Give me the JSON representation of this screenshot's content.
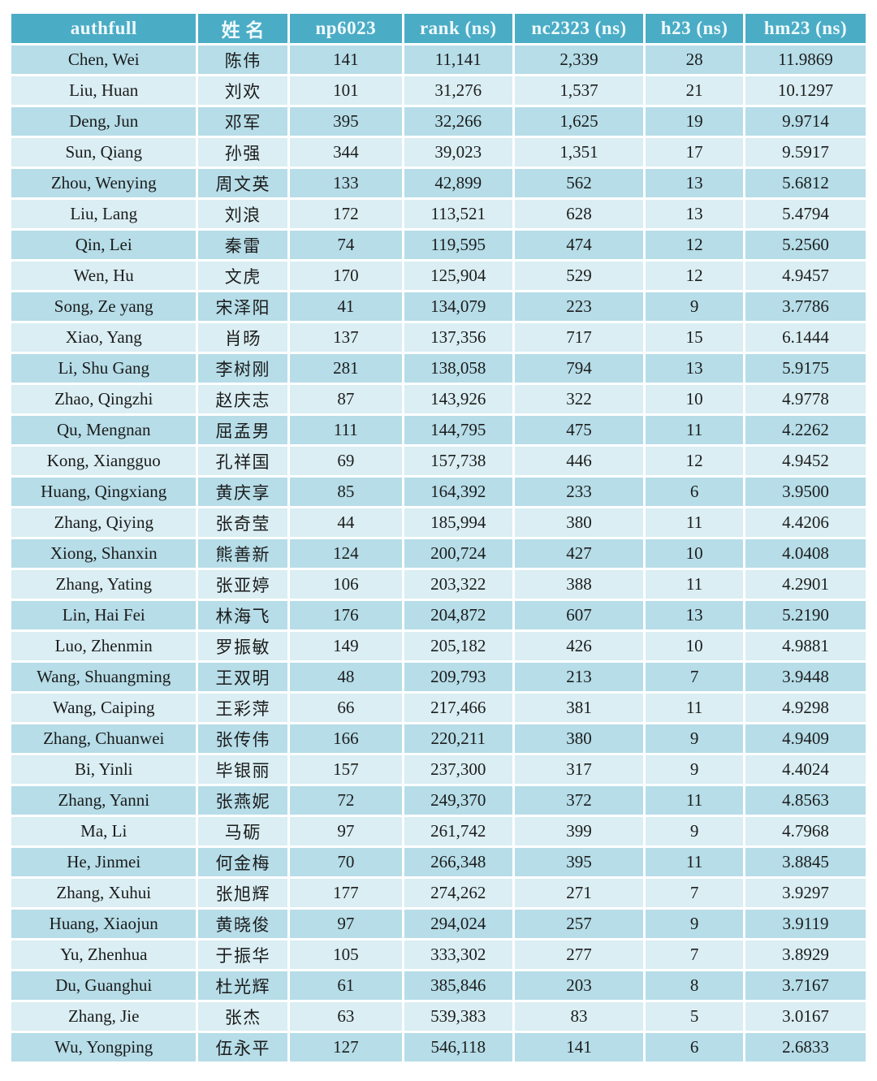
{
  "colors": {
    "header_bg": "#4BACC6",
    "header_text": "#F0FAFC",
    "row_band_dark": "#B6DDE8",
    "row_band_light": "#DAEEF3",
    "cell_text": "#1c1c1c",
    "gridline": "#ffffff"
  },
  "chart_data": {
    "type": "table",
    "columns": [
      "authfull",
      "姓 名",
      "np6023",
      "rank (ns)",
      "nc2323 (ns)",
      "h23 (ns)",
      "hm23 (ns)"
    ],
    "column_keys": [
      "authfull",
      "xingming",
      "np6023",
      "rank",
      "nc2323",
      "h23",
      "hm23"
    ],
    "rows": [
      [
        "Chen, Wei",
        "陈伟",
        "141",
        "11,141",
        "2,339",
        "28",
        "11.9869"
      ],
      [
        "Liu, Huan",
        "刘欢",
        "101",
        "31,276",
        "1,537",
        "21",
        "10.1297"
      ],
      [
        "Deng, Jun",
        "邓军",
        "395",
        "32,266",
        "1,625",
        "19",
        "9.9714"
      ],
      [
        "Sun, Qiang",
        "孙强",
        "344",
        "39,023",
        "1,351",
        "17",
        "9.5917"
      ],
      [
        "Zhou, Wenying",
        "周文英",
        "133",
        "42,899",
        "562",
        "13",
        "5.6812"
      ],
      [
        "Liu, Lang",
        "刘浪",
        "172",
        "113,521",
        "628",
        "13",
        "5.4794"
      ],
      [
        "Qin, Lei",
        "秦雷",
        "74",
        "119,595",
        "474",
        "12",
        "5.2560"
      ],
      [
        "Wen, Hu",
        "文虎",
        "170",
        "125,904",
        "529",
        "12",
        "4.9457"
      ],
      [
        "Song, Ze yang",
        "宋泽阳",
        "41",
        "134,079",
        "223",
        "9",
        "3.7786"
      ],
      [
        "Xiao, Yang",
        "肖旸",
        "137",
        "137,356",
        "717",
        "15",
        "6.1444"
      ],
      [
        "Li, Shu Gang",
        "李树刚",
        "281",
        "138,058",
        "794",
        "13",
        "5.9175"
      ],
      [
        "Zhao, Qingzhi",
        "赵庆志",
        "87",
        "143,926",
        "322",
        "10",
        "4.9778"
      ],
      [
        "Qu, Mengnan",
        "屈孟男",
        "111",
        "144,795",
        "475",
        "11",
        "4.2262"
      ],
      [
        "Kong, Xiangguo",
        "孔祥国",
        "69",
        "157,738",
        "446",
        "12",
        "4.9452"
      ],
      [
        "Huang, Qingxiang",
        "黄庆享",
        "85",
        "164,392",
        "233",
        "6",
        "3.9500"
      ],
      [
        "Zhang, Qiying",
        "张奇莹",
        "44",
        "185,994",
        "380",
        "11",
        "4.4206"
      ],
      [
        "Xiong, Shanxin",
        "熊善新",
        "124",
        "200,724",
        "427",
        "10",
        "4.0408"
      ],
      [
        "Zhang, Yating",
        "张亚婷",
        "106",
        "203,322",
        "388",
        "11",
        "4.2901"
      ],
      [
        "Lin, Hai Fei",
        "林海飞",
        "176",
        "204,872",
        "607",
        "13",
        "5.2190"
      ],
      [
        "Luo, Zhenmin",
        "罗振敏",
        "149",
        "205,182",
        "426",
        "10",
        "4.9881"
      ],
      [
        "Wang, Shuangming",
        "王双明",
        "48",
        "209,793",
        "213",
        "7",
        "3.9448"
      ],
      [
        "Wang, Caiping",
        "王彩萍",
        "66",
        "217,466",
        "381",
        "11",
        "4.9298"
      ],
      [
        "Zhang, Chuanwei",
        "张传伟",
        "166",
        "220,211",
        "380",
        "9",
        "4.9409"
      ],
      [
        "Bi, Yinli",
        "毕银丽",
        "157",
        "237,300",
        "317",
        "9",
        "4.4024"
      ],
      [
        "Zhang, Yanni",
        "张燕妮",
        "72",
        "249,370",
        "372",
        "11",
        "4.8563"
      ],
      [
        "Ma, Li",
        "马砺",
        "97",
        "261,742",
        "399",
        "9",
        "4.7968"
      ],
      [
        "He, Jinmei",
        "何金梅",
        "70",
        "266,348",
        "395",
        "11",
        "3.8845"
      ],
      [
        "Zhang, Xuhui",
        "张旭辉",
        "177",
        "274,262",
        "271",
        "7",
        "3.9297"
      ],
      [
        "Huang, Xiaojun",
        "黄晓俊",
        "97",
        "294,024",
        "257",
        "9",
        "3.9119"
      ],
      [
        "Yu, Zhenhua",
        "于振华",
        "105",
        "333,302",
        "277",
        "7",
        "3.8929"
      ],
      [
        "Du, Guanghui",
        "杜光辉",
        "61",
        "385,846",
        "203",
        "8",
        "3.7167"
      ],
      [
        "Zhang, Jie",
        "张杰",
        "63",
        "539,383",
        "83",
        "5",
        "3.0167"
      ],
      [
        "Wu, Yongping",
        "伍永平",
        "127",
        "546,118",
        "141",
        "6",
        "2.6833"
      ]
    ]
  }
}
